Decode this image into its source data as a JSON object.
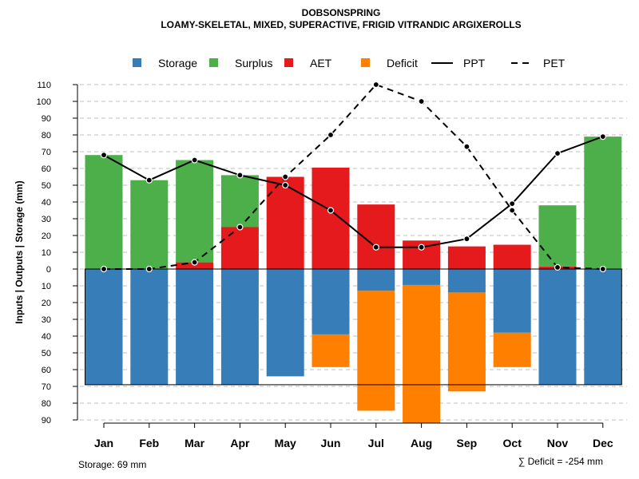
{
  "chart_data": {
    "type": "bar",
    "title": "DOBSONSPRING",
    "subtitle": "LOAMY-SKELETAL, MIXED, SUPERACTIVE, FRIGID VITRANDIC ARGIXEROLLS",
    "ylabel": "Inputs | Outputs | Storage    (mm)",
    "categories": [
      "Jan",
      "Feb",
      "Mar",
      "Apr",
      "May",
      "Jun",
      "Jul",
      "Aug",
      "Sep",
      "Oct",
      "Nov",
      "Dec"
    ],
    "ytick_values": [
      -90,
      -80,
      -70,
      -60,
      -50,
      -40,
      -30,
      -20,
      -10,
      0,
      10,
      20,
      30,
      40,
      50,
      60,
      70,
      80,
      90,
      100,
      110
    ],
    "ytick_labels": [
      "90",
      "80",
      "70",
      "60",
      "50",
      "40",
      "30",
      "20",
      "10",
      "0",
      "10",
      "20",
      "30",
      "40",
      "50",
      "60",
      "70",
      "80",
      "90",
      "100",
      "110"
    ],
    "ylim": [
      -90,
      110
    ],
    "grid": true,
    "legend": [
      {
        "name": "Storage",
        "kind": "box",
        "color": "#377EB8"
      },
      {
        "name": "Surplus",
        "kind": "box",
        "color": "#4DAF4A"
      },
      {
        "name": "AET",
        "kind": "box",
        "color": "#E41A1C"
      },
      {
        "name": "Deficit",
        "kind": "box",
        "color": "#FF7F00"
      },
      {
        "name": "PPT",
        "kind": "solid",
        "color": "#000000"
      },
      {
        "name": "PET",
        "kind": "dashed",
        "color": "#000000"
      }
    ],
    "series": [
      {
        "name": "AET",
        "color": "#E41A1C",
        "values": [
          0,
          0,
          4,
          25,
          55,
          60.5,
          38.5,
          17,
          13.5,
          14.5,
          1.5,
          0
        ]
      },
      {
        "name": "Surplus",
        "color": "#4DAF4A",
        "values": [
          68,
          53,
          61,
          31,
          0,
          0,
          0,
          0,
          0,
          0,
          36.5,
          79
        ]
      },
      {
        "name": "Storage",
        "color": "#377EB8",
        "values": [
          -69,
          -69,
          -69,
          -69,
          -64,
          -39,
          -13,
          -9.5,
          -14,
          -38,
          -69,
          -69
        ]
      },
      {
        "name": "Deficit",
        "color": "#FF7F00",
        "values": [
          0,
          0,
          0,
          0,
          0,
          -19.5,
          -71.5,
          -82.5,
          -59,
          -20.5,
          0,
          0
        ]
      },
      {
        "name": "PPT",
        "color": "#000000",
        "values": [
          68,
          53,
          65,
          56,
          50,
          35,
          13,
          13,
          18,
          39,
          69,
          79
        ]
      },
      {
        "name": "PET",
        "color": "#000000",
        "values": [
          0,
          0,
          4,
          25,
          55,
          80,
          110,
          100,
          73,
          35,
          1,
          0
        ]
      }
    ],
    "storage_capacity": 69,
    "footer_left": "Storage: 69 mm",
    "footer_right": "∑ Deficit = -254 mm"
  }
}
